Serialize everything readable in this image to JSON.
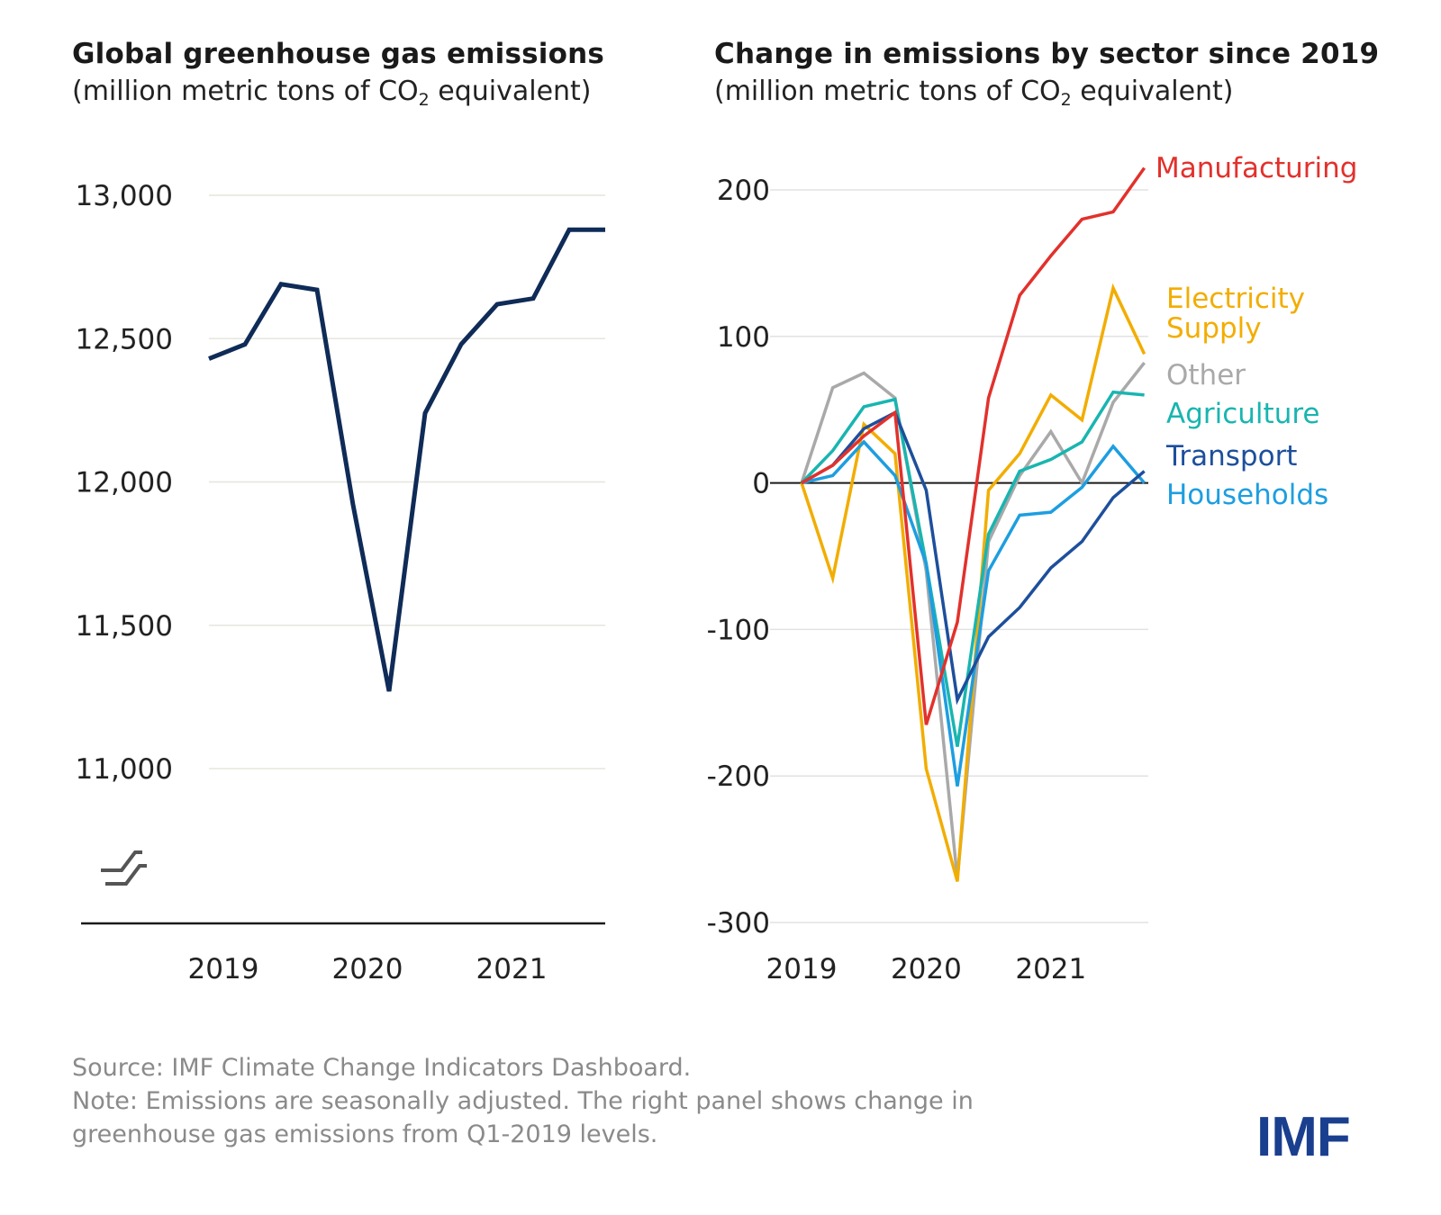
{
  "left_panel": {
    "title": "Global greenhouse gas  emissions",
    "subtitle_pre": "(million metric tons of CO",
    "subtitle_sub": "2",
    "subtitle_post": " equivalent)"
  },
  "right_panel": {
    "title": "Change in emissions by sector since 2019",
    "subtitle_pre": "(million metric tons of CO",
    "subtitle_sub": "2",
    "subtitle_post": " equivalent)"
  },
  "footer": {
    "source": "Source: IMF Climate Change Indicators Dashboard.",
    "note_line1": "Note: Emissions are seasonally adjusted. The right panel shows change in",
    "note_line2": "greenhouse gas emissions from Q1-2019 levels."
  },
  "logo": "IMF",
  "chart_data": [
    {
      "type": "line",
      "title": "Global greenhouse gas  emissions",
      "ylabel": "(million metric tons of CO2 equivalent)",
      "ylim": [
        11000,
        13000
      ],
      "yticks": [
        13000,
        12500,
        12000,
        11500,
        11000
      ],
      "ytick_labels": [
        "13,000",
        "12,500",
        "12,000",
        "11,500",
        "11,000"
      ],
      "xtick_labels": [
        "2019",
        "2020",
        "2021"
      ],
      "axis_break": true,
      "grid": true,
      "line_color": "#0f2b57",
      "x": [
        "2019-Q1",
        "2019-Q2",
        "2019-Q3",
        "2019-Q4",
        "2020-Q1",
        "2020-Q2",
        "2020-Q3",
        "2020-Q4",
        "2021-Q1",
        "2021-Q2",
        "2021-Q3",
        "2021-Q4"
      ],
      "values": [
        12430,
        12480,
        12690,
        12670,
        11920,
        11270,
        12240,
        12480,
        12620,
        12640,
        12880,
        12880
      ]
    },
    {
      "type": "line",
      "title": "Change in emissions by sector since 2019",
      "ylabel": "(million metric tons of CO2 equivalent)",
      "ylim": [
        -300,
        200
      ],
      "yticks": [
        200,
        100,
        0,
        -100,
        -200,
        -300
      ],
      "ytick_labels": [
        "200",
        "100",
        "0",
        "-100",
        "-200",
        "-300"
      ],
      "xtick_labels": [
        "2019",
        "2020",
        "2021"
      ],
      "grid": true,
      "x": [
        "2019-Q1",
        "2019-Q2",
        "2019-Q3",
        "2019-Q4",
        "2020-Q1",
        "2020-Q2",
        "2020-Q3",
        "2020-Q4",
        "2021-Q1",
        "2021-Q2",
        "2021-Q3",
        "2021-Q4"
      ],
      "series": [
        {
          "name": "Other",
          "color": "#a9a9a9",
          "values": [
            0,
            65,
            75,
            58,
            -60,
            -270,
            -40,
            5,
            35,
            0,
            55,
            82
          ]
        },
        {
          "name": "Electricity Supply",
          "color": "#f2ad00",
          "values": [
            0,
            -65,
            40,
            20,
            -195,
            -272,
            -5,
            20,
            60,
            43,
            133,
            88
          ]
        },
        {
          "name": "Agriculture",
          "color": "#19b5b0",
          "values": [
            0,
            22,
            52,
            57,
            -55,
            -180,
            -35,
            8,
            16,
            28,
            62,
            60
          ]
        },
        {
          "name": "Households",
          "color": "#1d9ee0",
          "values": [
            0,
            5,
            28,
            5,
            -55,
            -207,
            -60,
            -22,
            -20,
            -3,
            25,
            0
          ]
        },
        {
          "name": "Transport",
          "color": "#1d4f9c",
          "values": [
            0,
            12,
            37,
            48,
            -5,
            -148,
            -105,
            -85,
            -58,
            -40,
            -10,
            8
          ]
        },
        {
          "name": "Manufacturing",
          "color": "#e2312c",
          "values": [
            0,
            12,
            32,
            48,
            -165,
            -95,
            58,
            128,
            155,
            180,
            185,
            215
          ]
        }
      ],
      "legend_order": [
        "Manufacturing",
        "Electricity Supply",
        "Other",
        "Agriculture",
        "Transport",
        "Households"
      ],
      "legend_placement": "right"
    }
  ]
}
